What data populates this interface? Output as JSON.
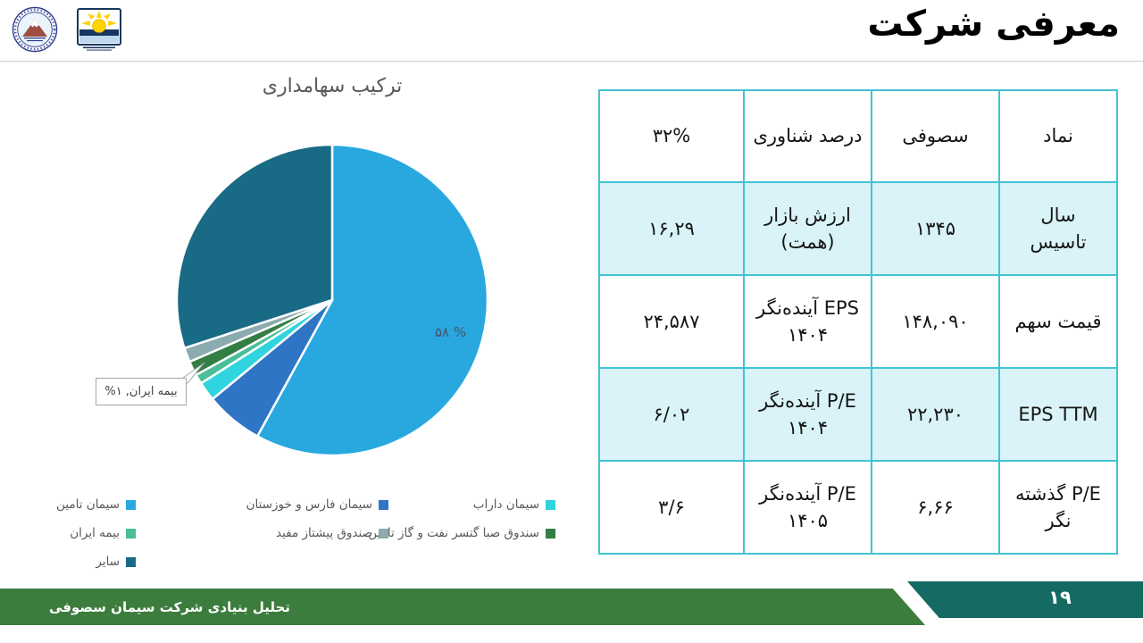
{
  "header": {
    "title": "معرفی شرکت"
  },
  "logos": {
    "left": "cement-company-emblem",
    "right": "brokerage-sun-logo"
  },
  "chart": {
    "title": "ترکیب سهامداری",
    "big_slice_label": "۵۸ %",
    "callout_label": "بیمه ایران, ۱%"
  },
  "chart_data": {
    "type": "pie",
    "title": "ترکیب سهامداری",
    "labels": [
      "سیمان تامین",
      "سیمان فارس و خوزستان",
      "سیمان داراب",
      "بیمه ایران",
      "سندوق صبا گتسر نفت و گاز تامین",
      "صندوق پیشتاز مفید",
      "سایر"
    ],
    "values": [
      58,
      6,
      2,
      1,
      1.5,
      1.5,
      30
    ],
    "colors": [
      "#29a8e0",
      "#2e75c6",
      "#2fd4de",
      "#4abe99",
      "#337e44",
      "#8aabaf",
      "#196a85"
    ],
    "data_labels": [
      "۵۸ %",
      "بیمه ایران, ۱%"
    ],
    "legend_position": "bottom"
  },
  "table": {
    "rows": [
      [
        "نماد",
        "سصوفی",
        "درصد شناوری",
        "۳۲%"
      ],
      [
        "سال\nتاسیس",
        "۱۳۴۵",
        "ارزش بازار\n(همت)",
        "۱۶,۲۹"
      ],
      [
        "قیمت سهم",
        "۱۴۸,۰۹۰",
        "EPS آینده‌نگر\n۱۴۰۴",
        "۲۴,۵۸۷"
      ],
      [
        "EPS TTM",
        "۲۲,۲۳۰",
        "P/E آینده‌نگر\n۱۴۰۴",
        "۶/۰۲"
      ],
      [
        "P/E گذشته\nنگر",
        "۶,۶۶",
        "P/E آینده‌نگر\n۱۴۰۵",
        "۳/۶"
      ]
    ]
  },
  "footer": {
    "text": "تحلیل بنیادی شرکت سیمان سصوفی",
    "page": "۱۹"
  }
}
